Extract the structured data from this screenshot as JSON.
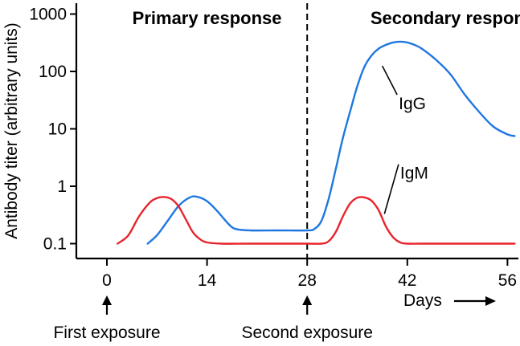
{
  "chart_data": {
    "type": "line",
    "xlabel": "Days",
    "ylabel": "Antibody titer (arbitrary units)",
    "yscale": "log",
    "xlim": [
      -3,
      57
    ],
    "ylim": [
      0.07,
      1300
    ],
    "x_ticks": [
      0,
      14,
      28,
      42,
      56
    ],
    "x_tick_labels": [
      "0",
      "14",
      "28",
      "42",
      "56"
    ],
    "y_ticks": [
      0.1,
      1,
      10,
      100,
      1000
    ],
    "y_tick_labels": [
      "0.1",
      "1",
      "10",
      "100",
      "1000"
    ],
    "grid": false,
    "legend": "none",
    "colors": {
      "IgG": "#1f77e0",
      "IgM": "#e8242c",
      "divider": "#000000"
    },
    "series": [
      {
        "name": "IgG",
        "x": [
          5.7,
          7,
          8.5,
          10,
          11.5,
          12.5,
          14,
          15.5,
          17,
          18,
          20,
          24,
          28,
          29,
          30,
          31,
          32,
          33,
          34,
          35,
          36,
          37,
          38,
          39,
          40,
          41,
          42,
          43,
          44,
          46,
          48,
          50,
          52,
          54,
          56,
          57
        ],
        "y": [
          0.1,
          0.14,
          0.25,
          0.45,
          0.63,
          0.66,
          0.55,
          0.36,
          0.22,
          0.18,
          0.17,
          0.17,
          0.17,
          0.18,
          0.25,
          0.6,
          2,
          7,
          20,
          55,
          120,
          190,
          250,
          290,
          320,
          330,
          320,
          290,
          250,
          160,
          90,
          40,
          20,
          11,
          8,
          7.5
        ]
      },
      {
        "name": "IgM",
        "x": [
          1.5,
          3,
          4.5,
          6,
          7,
          8,
          9,
          10,
          11,
          12,
          13,
          14,
          16,
          20,
          28,
          30,
          31,
          32,
          33,
          34,
          35,
          36,
          37,
          38,
          39,
          40,
          41,
          42,
          44,
          50,
          56,
          57
        ],
        "y": [
          0.1,
          0.14,
          0.3,
          0.52,
          0.62,
          0.65,
          0.6,
          0.45,
          0.27,
          0.16,
          0.12,
          0.105,
          0.1,
          0.1,
          0.1,
          0.1,
          0.11,
          0.16,
          0.3,
          0.5,
          0.63,
          0.64,
          0.56,
          0.38,
          0.2,
          0.13,
          0.105,
          0.1,
          0.1,
          0.1,
          0.1,
          0.1
        ]
      }
    ],
    "curve_labels": [
      {
        "series": "IgG",
        "text": "IgG",
        "point": [
          38.5,
          125
        ],
        "text_at": [
          40.8,
          22
        ]
      },
      {
        "series": "IgM",
        "text": "IgM",
        "point": [
          38.8,
          0.33
        ],
        "text_at": [
          41,
          1.35
        ]
      }
    ],
    "divider": {
      "x": 28,
      "style": "dashed"
    },
    "regions": [
      {
        "label": "Primary response",
        "x_center": 14
      },
      {
        "label": "Secondary response",
        "x_center": 49
      }
    ],
    "annotations": [
      {
        "text": "First exposure",
        "x": 0
      },
      {
        "text": "Second exposure",
        "x": 28
      }
    ],
    "days_label": "Days"
  }
}
